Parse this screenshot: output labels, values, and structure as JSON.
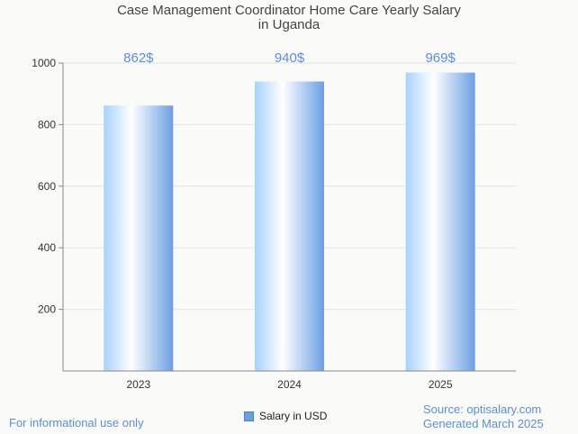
{
  "header": {
    "title_line1": "Case Management Coordinator Home Care Yearly Salary",
    "title_line2": "in Uganda"
  },
  "footer": {
    "disclaimer": "For informational use only",
    "source": "Source: optisalary.com",
    "generated": "Generated March 2025"
  },
  "colors": {
    "bar_light": "#ffffff",
    "bar_mid": "#a8d2ff",
    "bar_dark": "#6c9fe3",
    "value_label": "#5b8fd6",
    "grid": "#e3e3e3",
    "axis": "#888888"
  },
  "chart_data": {
    "type": "bar",
    "title": "Case Management Coordinator Home Care Yearly Salary in Uganda",
    "categories": [
      "2023",
      "2024",
      "2025"
    ],
    "series": [
      {
        "name": "Salary in USD",
        "values": [
          862,
          940,
          969
        ]
      }
    ],
    "data_labels": [
      "862$",
      "940$",
      "969$"
    ],
    "yticks": [
      200,
      400,
      600,
      800,
      1000
    ],
    "ylim": [
      0,
      1000
    ],
    "grid": true,
    "legend": "bottom-center"
  }
}
